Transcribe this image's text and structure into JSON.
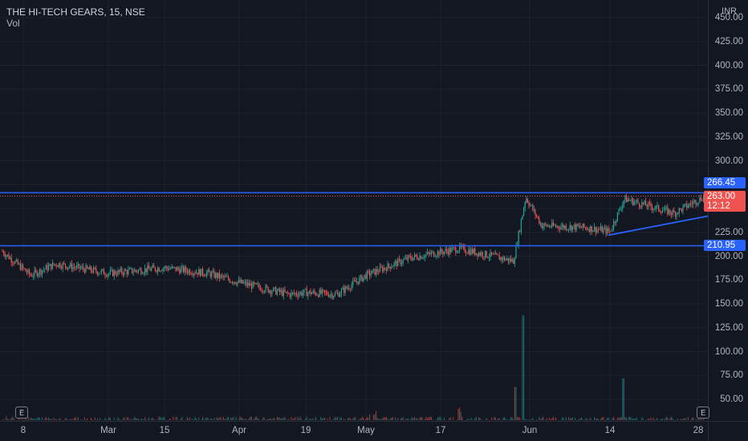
{
  "legend": {
    "title": "THE HI-TECH GEARS, 15, NSE",
    "volume_label": "Vol"
  },
  "y_axis": {
    "currency": "INR",
    "ticks": [
      "50.00",
      "75.00",
      "100.00",
      "125.00",
      "150.00",
      "175.00",
      "200.00",
      "225.00",
      "250.00",
      "275.00",
      "300.00",
      "325.00",
      "350.00",
      "375.00",
      "400.00",
      "425.00",
      "450.00"
    ]
  },
  "x_axis": {
    "ticks": [
      "8",
      "Mar",
      "15",
      "Apr",
      "19",
      "May",
      "17",
      "Jun",
      "14",
      "28"
    ]
  },
  "price_tags": {
    "upper_level": "266.45",
    "current_price": "263.00",
    "countdown": "12:12",
    "lower_level": "210.95"
  },
  "event_markers": {
    "left": "E",
    "right": "E"
  },
  "colors": {
    "background": "#131722",
    "up": "#26a69a",
    "down": "#ef5350",
    "level_line": "#2962ff",
    "grid": "#1e222d"
  },
  "chart_data": {
    "type": "candlestick",
    "title": "THE HI-TECH GEARS, 15, NSE",
    "currency": "INR",
    "ylim": [
      25,
      455
    ],
    "grid": true,
    "horizontal_levels": [
      266.45,
      210.95
    ],
    "current_price": 263.0,
    "trendline": {
      "from_price": 222,
      "to_price": 242
    },
    "price_path": [
      {
        "x": "8",
        "close": 205
      },
      {
        "x": "",
        "close": 180
      },
      {
        "x": "",
        "close": 192
      },
      {
        "x": "Mar",
        "close": 182
      },
      {
        "x": "15",
        "close": 188
      },
      {
        "x": "",
        "close": 182
      },
      {
        "x": "Apr",
        "close": 172
      },
      {
        "x": "",
        "close": 160
      },
      {
        "x": "19",
        "close": 162
      },
      {
        "x": "",
        "close": 160
      },
      {
        "x": "May",
        "close": 180
      },
      {
        "x": "",
        "close": 198
      },
      {
        "x": "17",
        "close": 208
      },
      {
        "x": "",
        "close": 195
      },
      {
        "x": "",
        "close": 262
      },
      {
        "x": "Jun",
        "close": 232
      },
      {
        "x": "",
        "close": 230
      },
      {
        "x": "14",
        "close": 226
      },
      {
        "x": "",
        "close": 260
      },
      {
        "x": "",
        "close": 245
      },
      {
        "x": "28",
        "close": 263
      }
    ],
    "volume_spikes": [
      {
        "x": "17",
        "value": 138
      },
      {
        "x": "14",
        "value": 72
      }
    ]
  }
}
